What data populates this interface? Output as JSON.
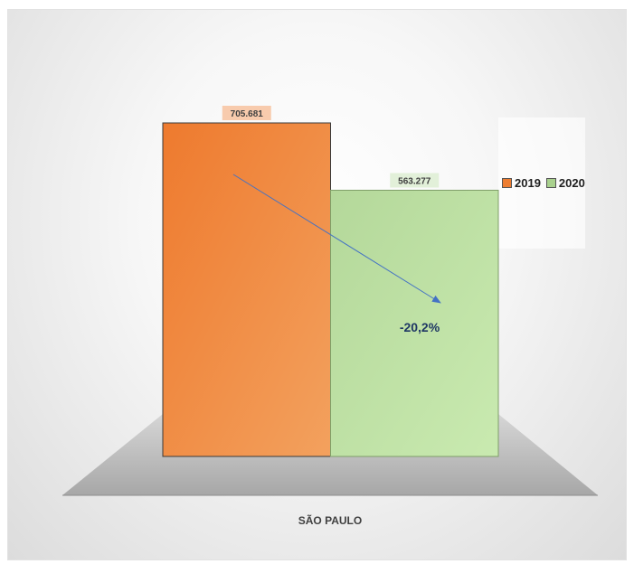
{
  "chart_data": {
    "type": "bar",
    "categories": [
      "SÃO PAULO"
    ],
    "series": [
      {
        "name": "2019",
        "values": [
          705681
        ],
        "label": "705.681",
        "color": "#ED7D31"
      },
      {
        "name": "2020",
        "values": [
          563277
        ],
        "label": "563.277",
        "color": "#A9D18E"
      }
    ],
    "annotation": "-20,2%",
    "xlabel": "SÃO PAULO",
    "ylim": [
      0,
      705681
    ],
    "grid": false,
    "legend_position": "right"
  }
}
